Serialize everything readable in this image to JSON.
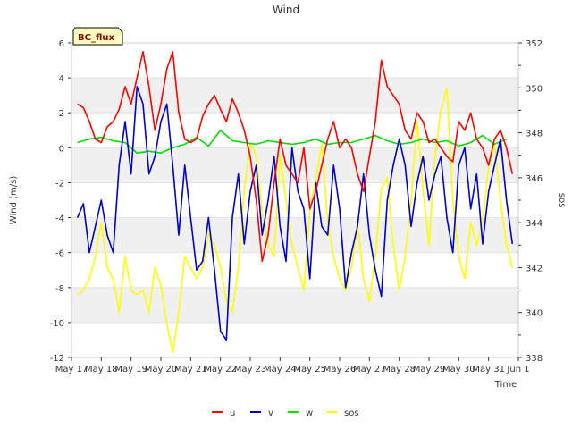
{
  "chart_data": {
    "type": "line",
    "title": "Wind",
    "badge": "BC_flux",
    "xlabel": "Time",
    "ylabel": "Wind (m/s)",
    "y2label": "sos",
    "xlim": [
      0,
      15
    ],
    "ylim": [
      -12,
      6
    ],
    "y2lim": [
      338,
      352
    ],
    "x_ticks": [
      {
        "v": 0,
        "label": "May 17"
      },
      {
        "v": 1,
        "label": "May 18"
      },
      {
        "v": 2,
        "label": "May 19"
      },
      {
        "v": 3,
        "label": "May 20"
      },
      {
        "v": 4,
        "label": "May 21"
      },
      {
        "v": 5,
        "label": "May 22"
      },
      {
        "v": 6,
        "label": "May 23"
      },
      {
        "v": 7,
        "label": "May 24"
      },
      {
        "v": 8,
        "label": "May 25"
      },
      {
        "v": 9,
        "label": "May 26"
      },
      {
        "v": 10,
        "label": "May 27"
      },
      {
        "v": 11,
        "label": "May 28"
      },
      {
        "v": 12,
        "label": "May 29"
      },
      {
        "v": 13,
        "label": "May 30"
      },
      {
        "v": 14,
        "label": "May 31"
      },
      {
        "v": 15,
        "label": "Jun 1"
      }
    ],
    "y_ticks": [
      6,
      4,
      2,
      0,
      -2,
      -4,
      -6,
      -8,
      -10,
      -12
    ],
    "y2_ticks": [
      352,
      350,
      348,
      346,
      344,
      342,
      340,
      338
    ],
    "legend_position": "bottom-center",
    "series": [
      {
        "name": "u",
        "color": "#ff0000",
        "axis": "left",
        "x": [
          0.2,
          0.4,
          0.6,
          0.8,
          1.0,
          1.2,
          1.4,
          1.6,
          1.8,
          2.0,
          2.2,
          2.4,
          2.6,
          2.8,
          3.0,
          3.2,
          3.4,
          3.6,
          3.8,
          4.0,
          4.2,
          4.4,
          4.6,
          4.8,
          5.0,
          5.2,
          5.4,
          5.6,
          5.8,
          6.0,
          6.2,
          6.4,
          6.6,
          6.8,
          7.0,
          7.2,
          7.4,
          7.6,
          7.8,
          8.0,
          8.2,
          8.4,
          8.6,
          8.8,
          9.0,
          9.2,
          9.4,
          9.6,
          9.8,
          10.0,
          10.2,
          10.4,
          10.6,
          10.8,
          11.0,
          11.2,
          11.4,
          11.6,
          11.8,
          12.0,
          12.2,
          12.4,
          12.6,
          12.8,
          13.0,
          13.2,
          13.4,
          13.6,
          13.8,
          14.0,
          14.2,
          14.4,
          14.6,
          14.8
        ],
        "y": [
          2.5,
          2.3,
          1.5,
          0.5,
          0.3,
          1.2,
          1.5,
          2.2,
          3.5,
          2.5,
          4.0,
          5.5,
          3.5,
          1.0,
          2.5,
          4.5,
          5.5,
          2.0,
          0.5,
          0.3,
          0.5,
          1.8,
          2.5,
          3.0,
          2.2,
          1.5,
          2.8,
          2.0,
          1.0,
          -0.5,
          -3.0,
          -6.5,
          -5.0,
          -2.0,
          0.5,
          -1.0,
          -1.5,
          -2.0,
          0.0,
          -3.5,
          -2.5,
          -1.0,
          0.5,
          1.5,
          0.0,
          0.5,
          0.0,
          -1.5,
          -2.5,
          -0.5,
          1.5,
          5.0,
          3.5,
          3.0,
          2.5,
          1.0,
          0.5,
          2.0,
          1.5,
          0.3,
          0.5,
          0.0,
          -0.5,
          -0.8,
          1.5,
          1.0,
          2.0,
          0.5,
          0.0,
          -1.0,
          0.5,
          1.0,
          0.0,
          -1.5
        ]
      },
      {
        "name": "v",
        "color": "#0000cc",
        "axis": "left",
        "x": [
          0.2,
          0.4,
          0.6,
          0.8,
          1.0,
          1.2,
          1.4,
          1.6,
          1.8,
          2.0,
          2.2,
          2.4,
          2.6,
          2.8,
          3.0,
          3.2,
          3.4,
          3.6,
          3.8,
          4.0,
          4.2,
          4.4,
          4.6,
          4.8,
          5.0,
          5.2,
          5.4,
          5.6,
          5.8,
          6.0,
          6.2,
          6.4,
          6.6,
          6.8,
          7.0,
          7.2,
          7.4,
          7.6,
          7.8,
          8.0,
          8.2,
          8.4,
          8.6,
          8.8,
          9.0,
          9.2,
          9.4,
          9.6,
          9.8,
          10.0,
          10.2,
          10.4,
          10.6,
          10.8,
          11.0,
          11.2,
          11.4,
          11.6,
          11.8,
          12.0,
          12.2,
          12.4,
          12.6,
          12.8,
          13.0,
          13.2,
          13.4,
          13.6,
          13.8,
          14.0,
          14.2,
          14.4,
          14.6,
          14.8
        ],
        "y": [
          -4.0,
          -3.2,
          -6.0,
          -4.5,
          -3.0,
          -5.0,
          -6.0,
          -1.0,
          1.5,
          -1.5,
          3.5,
          2.5,
          -1.5,
          -0.5,
          1.5,
          2.5,
          -1.0,
          -5.0,
          -1.0,
          -4.0,
          -7.0,
          -6.5,
          -4.0,
          -7.0,
          -10.5,
          -11.0,
          -4.0,
          -1.5,
          -5.5,
          -2.5,
          -1.0,
          -5.0,
          -3.0,
          -0.5,
          -4.5,
          -6.5,
          0.0,
          -2.5,
          -3.5,
          -7.5,
          -2.0,
          -4.5,
          -5.0,
          -1.0,
          -3.5,
          -8.0,
          -6.0,
          -4.5,
          -1.5,
          -5.0,
          -7.0,
          -8.5,
          -3.0,
          -1.0,
          0.5,
          -1.0,
          -4.5,
          -2.0,
          -0.5,
          -3.0,
          -1.5,
          -0.5,
          -4.0,
          -6.0,
          -1.0,
          0.0,
          -3.5,
          -1.5,
          -5.5,
          -2.5,
          -1.0,
          0.5,
          -3.0,
          -5.5
        ]
      },
      {
        "name": "w",
        "color": "#00dd00",
        "axis": "left",
        "x": [
          0.2,
          0.6,
          1.0,
          1.4,
          1.8,
          2.2,
          2.6,
          3.0,
          3.4,
          3.8,
          4.2,
          4.6,
          5.0,
          5.4,
          5.8,
          6.2,
          6.6,
          7.0,
          7.4,
          7.8,
          8.2,
          8.6,
          9.0,
          9.4,
          9.8,
          10.2,
          10.6,
          11.0,
          11.4,
          11.8,
          12.2,
          12.6,
          13.0,
          13.4,
          13.8,
          14.2,
          14.6
        ],
        "y": [
          0.3,
          0.5,
          0.6,
          0.4,
          0.3,
          -0.3,
          -0.2,
          -0.3,
          0.0,
          0.2,
          0.6,
          0.1,
          1.0,
          0.4,
          0.3,
          0.2,
          0.4,
          0.3,
          0.2,
          0.3,
          0.5,
          0.2,
          0.3,
          0.3,
          0.5,
          0.7,
          0.4,
          0.2,
          0.3,
          0.5,
          0.3,
          0.4,
          0.1,
          0.3,
          0.7,
          0.2,
          0.5
        ]
      },
      {
        "name": "sos",
        "color": "#ffff00",
        "axis": "right",
        "x": [
          0.2,
          0.4,
          0.6,
          0.8,
          1.0,
          1.2,
          1.4,
          1.6,
          1.8,
          2.0,
          2.2,
          2.4,
          2.6,
          2.8,
          3.0,
          3.2,
          3.4,
          3.6,
          3.8,
          4.0,
          4.2,
          4.4,
          4.6,
          4.8,
          5.0,
          5.2,
          5.4,
          5.6,
          5.8,
          6.0,
          6.2,
          6.4,
          6.6,
          6.8,
          7.0,
          7.2,
          7.4,
          7.6,
          7.8,
          8.0,
          8.2,
          8.4,
          8.6,
          8.8,
          9.0,
          9.2,
          9.4,
          9.6,
          9.8,
          10.0,
          10.2,
          10.4,
          10.6,
          10.8,
          11.0,
          11.2,
          11.4,
          11.6,
          11.8,
          12.0,
          12.2,
          12.4,
          12.6,
          12.8,
          13.0,
          13.2,
          13.4,
          13.6,
          13.8,
          14.0,
          14.2,
          14.4,
          14.6,
          14.8
        ],
        "y": [
          340.8,
          341.0,
          341.5,
          342.5,
          344.0,
          342.0,
          341.5,
          340.0,
          342.5,
          341.0,
          340.8,
          341.0,
          340.0,
          342.0,
          341.2,
          339.5,
          338.2,
          340.0,
          342.5,
          342.0,
          341.5,
          342.0,
          343.5,
          343.0,
          342.0,
          340.5,
          340.0,
          342.0,
          345.5,
          347.5,
          347.0,
          344.5,
          343.0,
          342.5,
          347.0,
          345.0,
          343.0,
          342.0,
          341.0,
          344.5,
          346.0,
          347.5,
          344.0,
          342.5,
          341.5,
          341.0,
          342.0,
          344.0,
          341.5,
          340.5,
          342.5,
          345.5,
          346.0,
          343.0,
          341.0,
          342.5,
          345.0,
          348.5,
          345.5,
          343.0,
          347.0,
          349.0,
          350.0,
          345.0,
          342.5,
          341.5,
          344.0,
          343.0,
          344.0,
          346.5,
          347.5,
          345.0,
          343.0,
          342.0
        ]
      }
    ]
  }
}
